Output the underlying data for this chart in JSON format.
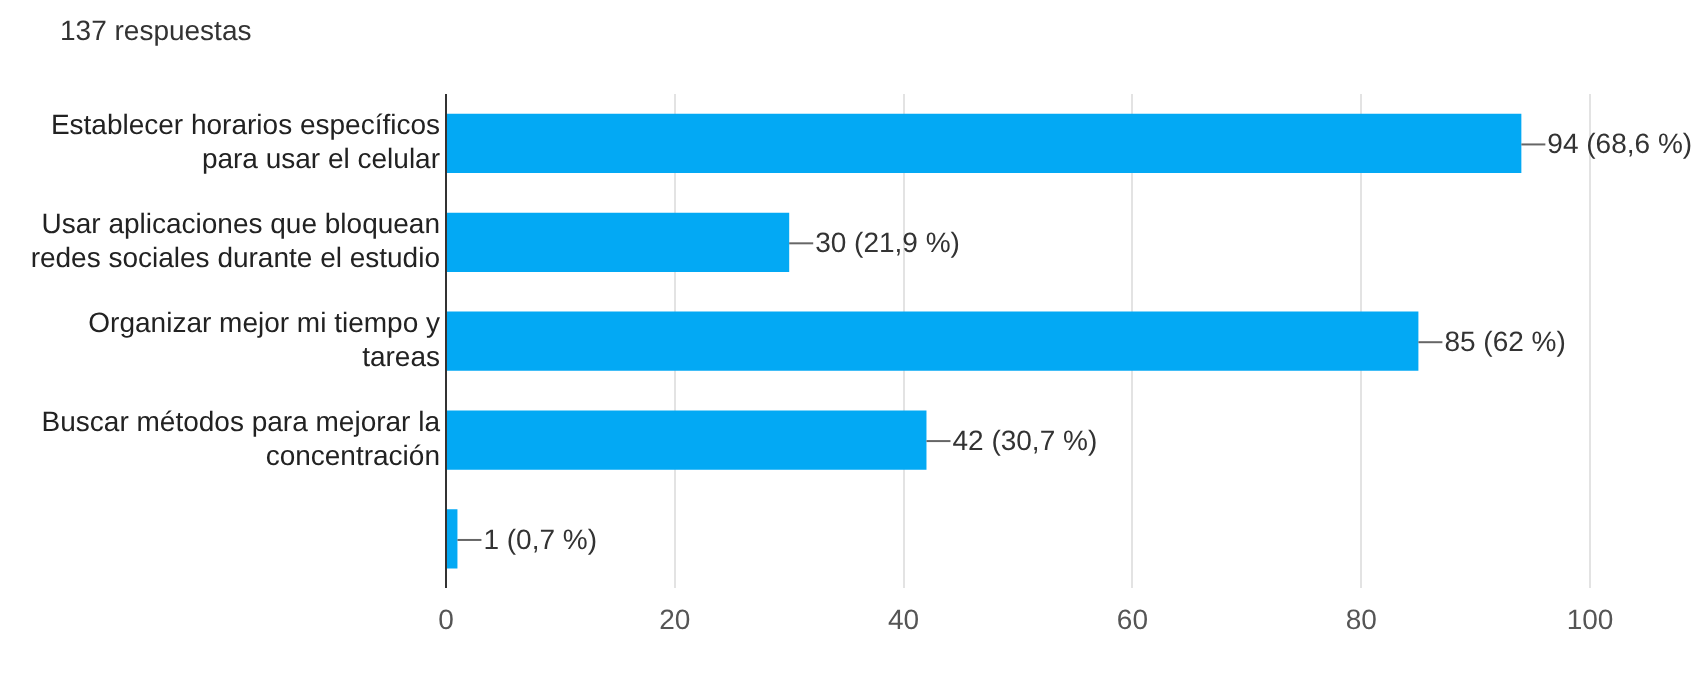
{
  "chart_data": {
    "type": "bar",
    "orientation": "horizontal",
    "subtitle": "137 respuestas",
    "categories": [
      "Establecer horarios específicos para usar el celular",
      "Usar aplicaciones que bloquean redes sociales durante el estudio",
      "Organizar mejor mi tiempo y tareas",
      "Buscar métodos para mejorar la concentración",
      null
    ],
    "values": [
      94,
      30,
      85,
      42,
      1
    ],
    "value_labels": [
      "94 (68,6 %)",
      "30 (21,9 %)",
      "85 (62 %)",
      "42 (30,7 %)",
      "1 (0,7 %)"
    ],
    "color": "#03a9f4",
    "xlim": [
      0,
      100
    ],
    "xticks": [
      0,
      20,
      40,
      60,
      80,
      100
    ],
    "grid": "x",
    "legend": false
  }
}
